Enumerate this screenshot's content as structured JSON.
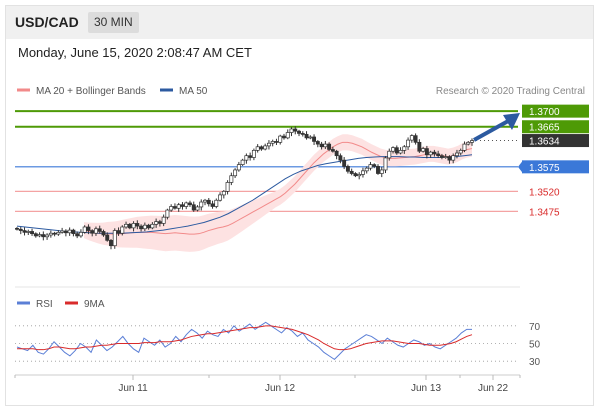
{
  "header": {
    "pair": "USD/CAD",
    "timeframe": "30 MIN"
  },
  "datetime": "Monday, June 15, 2020 2:08:47 AM CET",
  "legend": {
    "ma20": "MA 20 + Bollinger Bands",
    "ma50": "MA 50",
    "ma20_color": "#f28a8a",
    "ma50_color": "#2c5aa0"
  },
  "credit": "Research © 2020 Trading Central",
  "rsi_legend": {
    "rsi": "RSI",
    "ma9": "9MA",
    "rsi_color": "#5b7fd6",
    "ma9_color": "#d92b2b"
  },
  "x_labels": [
    "Jun 11",
    "Jun 12",
    "Jun 13",
    "Jun 22"
  ],
  "chart_data": {
    "type": "candlestick",
    "price_ylim": [
      1.333,
      1.3725
    ],
    "levels": [
      {
        "label": "1.3700",
        "value": 1.37,
        "kind": "resistance",
        "color": "#4e9a06"
      },
      {
        "label": "1.3665",
        "value": 1.3665,
        "kind": "resistance",
        "color": "#4e9a06"
      },
      {
        "label": "1.3634",
        "value": 1.3634,
        "kind": "last",
        "color": "#333333"
      },
      {
        "label": "1.3575",
        "value": 1.3575,
        "kind": "pivot",
        "color": "#3b78d8"
      },
      {
        "label": "1.3520",
        "value": 1.352,
        "kind": "support",
        "color": "#d92b2b"
      },
      {
        "label": "1.3475",
        "value": 1.3475,
        "kind": "support",
        "color": "#d92b2b"
      }
    ],
    "close": [
      1.3435,
      1.3432,
      1.3428,
      1.343,
      1.3425,
      1.342,
      1.3423,
      1.3418,
      1.3422,
      1.3426,
      1.3424,
      1.3428,
      1.3431,
      1.3427,
      1.3433,
      1.3425,
      1.342,
      1.3428,
      1.344,
      1.3432,
      1.3426,
      1.3436,
      1.343,
      1.3422,
      1.341,
      1.3398,
      1.3432,
      1.3426,
      1.344,
      1.3446,
      1.3438,
      1.3448,
      1.3442,
      1.3436,
      1.3444,
      1.3438,
      1.3446,
      1.3452,
      1.3448,
      1.3462,
      1.3478,
      1.3486,
      1.3482,
      1.349,
      1.3486,
      1.3494,
      1.349,
      1.3478,
      1.3485,
      1.3496,
      1.35,
      1.3492,
      1.3486,
      1.35,
      1.3512,
      1.352,
      1.354,
      1.3555,
      1.3568,
      1.358,
      1.359,
      1.36,
      1.3596,
      1.3612,
      1.362,
      1.3615,
      1.3622,
      1.3628,
      1.3632,
      1.363,
      1.3644,
      1.364,
      1.3652,
      1.366,
      1.3655,
      1.365,
      1.3648,
      1.364,
      1.3642,
      1.3632,
      1.3626,
      1.362,
      1.3626,
      1.3614,
      1.361,
      1.36,
      1.359,
      1.3576,
      1.3565,
      1.356,
      1.3555,
      1.3558,
      1.3566,
      1.3572,
      1.358,
      1.3576,
      1.356,
      1.3568,
      1.3595,
      1.361,
      1.3618,
      1.3606,
      1.3612,
      1.362,
      1.3635,
      1.3645,
      1.363,
      1.361,
      1.3616,
      1.3602,
      1.3608,
      1.3604,
      1.36,
      1.3596,
      1.3598,
      1.359,
      1.36,
      1.3606,
      1.3612,
      1.3626,
      1.363,
      1.3634
    ],
    "ma20": [
      1.3433,
      1.343,
      1.3428,
      1.3426,
      1.3425,
      1.3425,
      1.3424,
      1.3424,
      1.3425,
      1.3426,
      1.3427,
      1.3428,
      1.3428,
      1.3428,
      1.3428,
      1.3427,
      1.3426,
      1.3425,
      1.3426,
      1.3427,
      1.3426,
      1.3425,
      1.3424,
      1.3424,
      1.3425,
      1.3428,
      1.3432,
      1.3435,
      1.3438,
      1.344,
      1.3443,
      1.3448,
      1.3454,
      1.346,
      1.3466,
      1.3472,
      1.3478,
      1.3484,
      1.349,
      1.3496,
      1.3502,
      1.3508,
      1.3516,
      1.3526,
      1.3536,
      1.3548,
      1.356,
      1.3572,
      1.3584,
      1.3594,
      1.3604,
      1.3612,
      1.362,
      1.3626,
      1.363,
      1.363,
      1.3628,
      1.3624,
      1.362,
      1.3614,
      1.3608,
      1.3603,
      1.3598,
      1.3595,
      1.3594,
      1.3594,
      1.3595,
      1.3596,
      1.3597,
      1.3598,
      1.36,
      1.3602,
      1.3604,
      1.3604,
      1.3602,
      1.36,
      1.3598,
      1.36,
      1.3604,
      1.361,
      1.3614,
      1.3616
    ],
    "ma50": [
      1.3442,
      1.344,
      1.3438,
      1.3436,
      1.3434,
      1.3432,
      1.343,
      1.3429,
      1.3428,
      1.3427,
      1.3426,
      1.3426,
      1.3426,
      1.3426,
      1.3427,
      1.3428,
      1.3429,
      1.3431,
      1.3433,
      1.3436,
      1.3439,
      1.3442,
      1.3446,
      1.345,
      1.3456,
      1.3462,
      1.347,
      1.348,
      1.349,
      1.35,
      1.3512,
      1.3524,
      1.3536,
      1.3548,
      1.3558,
      1.3566,
      1.3572,
      1.3578,
      1.3582,
      1.3585,
      1.3588,
      1.3591,
      1.3594,
      1.3596,
      1.3597,
      1.3598,
      1.3598,
      1.3598,
      1.3597,
      1.3597,
      1.3596,
      1.3596,
      1.3596,
      1.3597,
      1.3598,
      1.36,
      1.3602
    ],
    "rsi_ylim": [
      20,
      80
    ],
    "rsi_ticks": [
      "70",
      "50",
      "30"
    ],
    "rsi": [
      46,
      44,
      42,
      48,
      40,
      38,
      44,
      52,
      46,
      40,
      36,
      42,
      50,
      46,
      40,
      54,
      48,
      42,
      46,
      52,
      58,
      50,
      44,
      40,
      56,
      52,
      48,
      54,
      46,
      50,
      58,
      52,
      60,
      66,
      62,
      56,
      64,
      60,
      58,
      66,
      62,
      70,
      64,
      68,
      72,
      66,
      70,
      74,
      70,
      66,
      62,
      68,
      64,
      58,
      62,
      54,
      50,
      46,
      40,
      36,
      32,
      38,
      44,
      48,
      52,
      56,
      60,
      58,
      54,
      50,
      56,
      52,
      48,
      46,
      50,
      54,
      52,
      48,
      50,
      46,
      44,
      48,
      52,
      56,
      62,
      66,
      66
    ],
    "ma9": [
      44,
      44,
      44,
      44,
      43,
      43,
      44,
      46,
      46,
      45,
      44,
      44,
      45,
      46,
      46,
      47,
      48,
      48,
      49,
      50,
      50,
      50,
      50,
      50,
      51,
      51,
      51,
      52,
      52,
      52,
      53,
      54,
      56,
      58,
      59,
      60,
      61,
      61,
      62,
      63,
      64,
      65,
      66,
      67,
      68,
      68,
      69,
      70,
      70,
      69,
      68,
      67,
      66,
      64,
      62,
      60,
      57,
      54,
      50,
      47,
      44,
      43,
      43,
      44,
      46,
      48,
      50,
      51,
      52,
      53,
      53,
      53,
      52,
      51,
      50,
      50,
      50,
      49,
      48,
      48,
      48,
      49,
      50,
      52,
      55,
      58,
      60
    ]
  }
}
